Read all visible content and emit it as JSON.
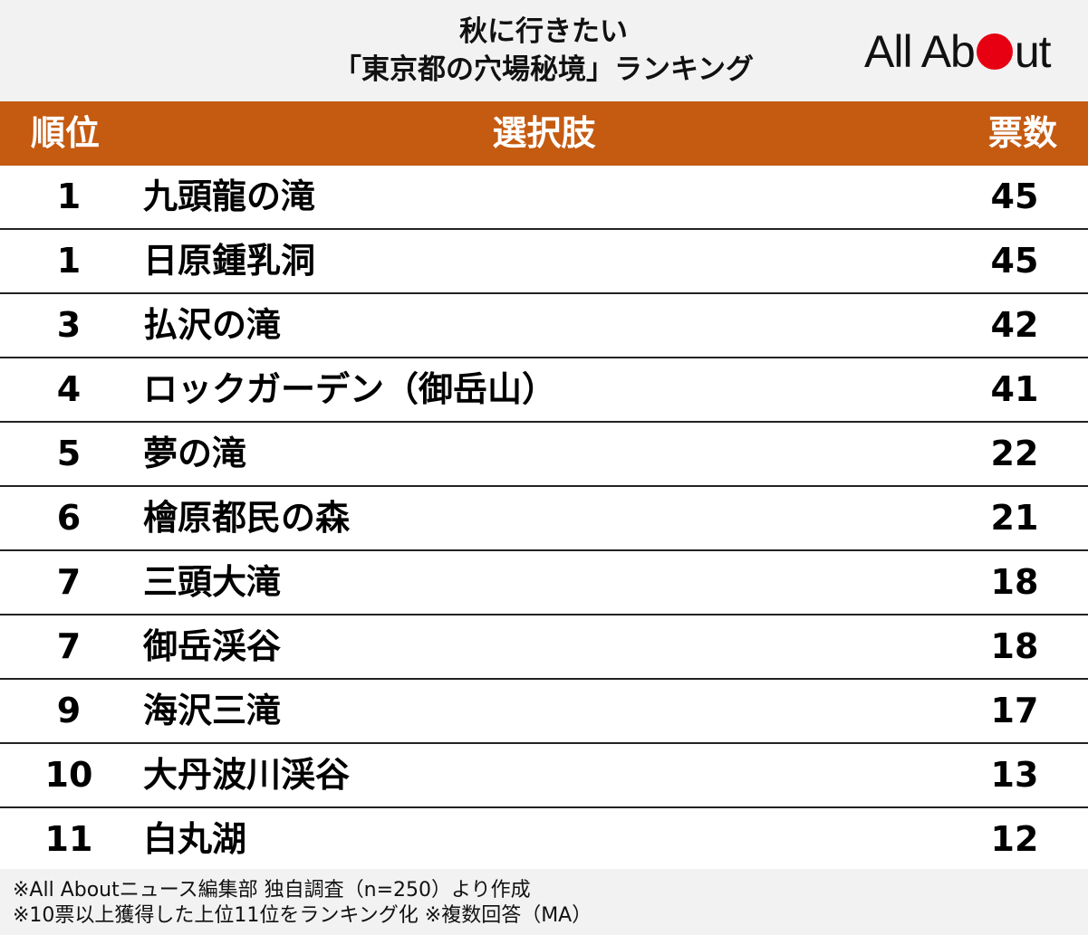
{
  "header": {
    "title_line1": "秋に行きたい",
    "title_line2": "「東京都の穴場秘境」ランキング",
    "logo_text_before": "All Ab",
    "logo_text_after": "ut"
  },
  "table": {
    "col_rank": "順位",
    "col_choice": "選択肢",
    "col_votes": "票数"
  },
  "notes": [
    "※All Aboutニュース編集部 独自調査（n=250）より作成",
    "※10票以上獲得した上位11位をランキング化 ※複数回答（MA）"
  ],
  "colors": {
    "header_bg": "#c55a11",
    "header_text": "#ffffff",
    "logo_accent": "#e60012",
    "band_bg": "#f2f2f2"
  },
  "chart_data": {
    "type": "table",
    "columns": [
      "順位",
      "選択肢",
      "票数"
    ],
    "rows": [
      {
        "rank": "1",
        "name": "九頭龍の滝",
        "votes": 45
      },
      {
        "rank": "1",
        "name": "日原鍾乳洞",
        "votes": 45
      },
      {
        "rank": "3",
        "name": "払沢の滝",
        "votes": 42
      },
      {
        "rank": "4",
        "name": "ロックガーデン（御岳山）",
        "votes": 41
      },
      {
        "rank": "5",
        "name": "夢の滝",
        "votes": 22
      },
      {
        "rank": "6",
        "name": "檜原都民の森",
        "votes": 21
      },
      {
        "rank": "7",
        "name": "三頭大滝",
        "votes": 18
      },
      {
        "rank": "7",
        "name": "御岳渓谷",
        "votes": 18
      },
      {
        "rank": "9",
        "name": "海沢三滝",
        "votes": 17
      },
      {
        "rank": "10",
        "name": "大丹波川渓谷",
        "votes": 13
      },
      {
        "rank": "11",
        "name": "白丸湖",
        "votes": 12
      }
    ]
  }
}
